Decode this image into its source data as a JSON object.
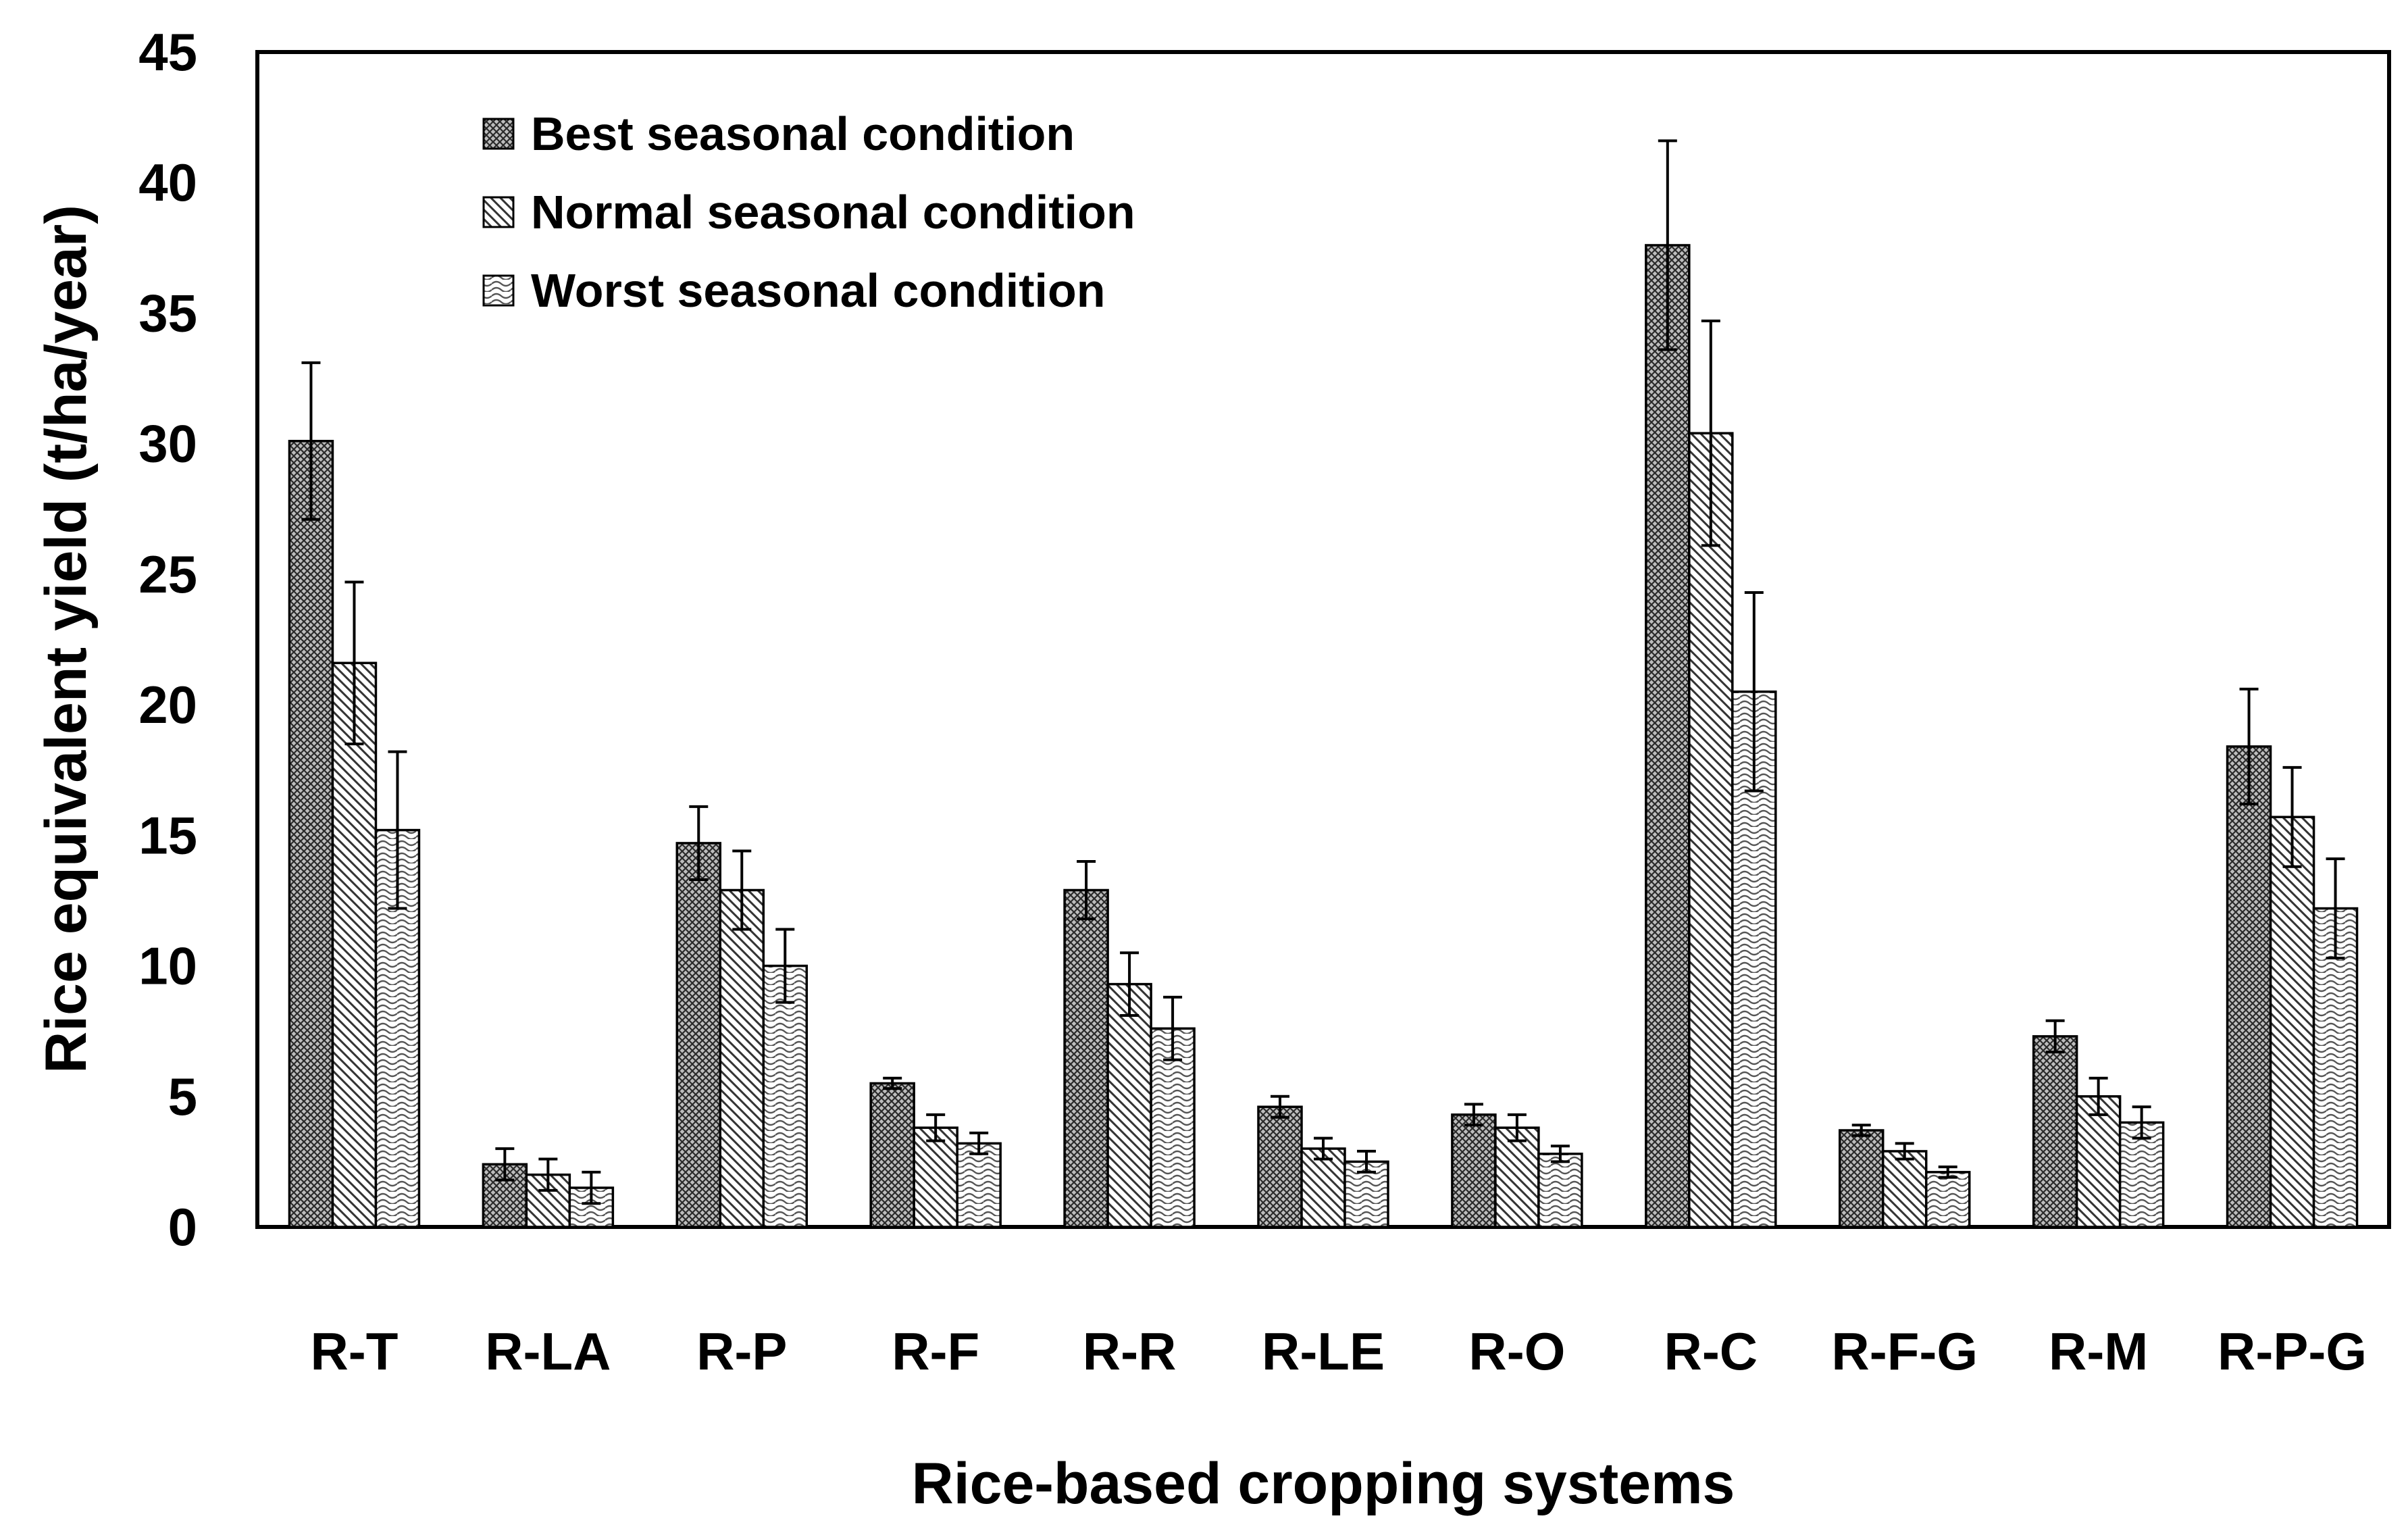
{
  "chart_data": {
    "type": "bar",
    "title": "",
    "xlabel": "Rice-based cropping systems",
    "ylabel": "Rice equivalent yield (t/ha/year)",
    "ylim": [
      0,
      45
    ],
    "yticks": [
      "0",
      "5",
      "10",
      "15",
      "20",
      "25",
      "30",
      "35",
      "40",
      "45"
    ],
    "categories": [
      "R-T",
      "R-LA",
      "R-P",
      "R-F",
      "R-R",
      "R-LE",
      "R-O",
      "R-C",
      "R-F-G",
      "R-M",
      "R-P-G"
    ],
    "legend_position": "top-left",
    "series": [
      {
        "name": "Best seasonal condition",
        "pattern": "cross-hatch",
        "values": [
          30.1,
          2.4,
          14.7,
          5.5,
          12.9,
          4.6,
          4.3,
          37.6,
          3.7,
          7.3,
          18.4
        ],
        "errors": [
          3.0,
          0.6,
          1.4,
          0.2,
          1.1,
          0.4,
          0.4,
          4.0,
          0.2,
          0.6,
          2.2
        ]
      },
      {
        "name": "Normal seasonal condition",
        "pattern": "diagonal-lines",
        "values": [
          21.6,
          2.0,
          12.9,
          3.8,
          9.3,
          3.0,
          3.8,
          30.4,
          2.9,
          5.0,
          15.7
        ],
        "errors": [
          3.1,
          0.6,
          1.5,
          0.5,
          1.2,
          0.4,
          0.5,
          4.3,
          0.3,
          0.7,
          1.9
        ]
      },
      {
        "name": "Worst seasonal condition",
        "pattern": "wavy",
        "values": [
          15.2,
          1.5,
          10.0,
          3.2,
          7.6,
          2.5,
          2.8,
          20.5,
          2.1,
          4.0,
          12.2
        ],
        "errors": [
          3.0,
          0.6,
          1.4,
          0.4,
          1.2,
          0.4,
          0.3,
          3.8,
          0.2,
          0.6,
          1.9
        ]
      }
    ]
  }
}
